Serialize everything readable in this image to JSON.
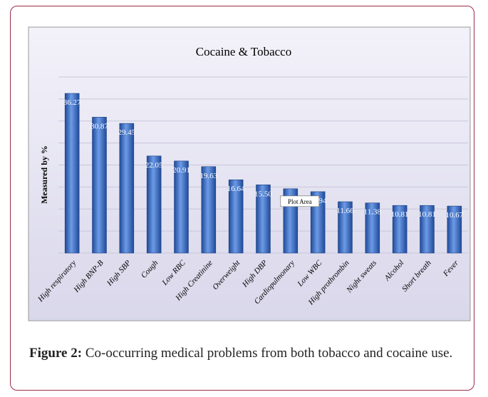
{
  "chart_data": {
    "type": "bar",
    "title": "Cocaine & Tobacco",
    "ylabel": "Measured by %",
    "categories": [
      "High respiratory",
      "High BNP-B",
      "High SBP",
      "Cough",
      "Low RBC",
      "High Creatinine",
      "Overweight",
      "High DBP",
      "Cardiopulmonary",
      "Low WBC",
      "High prothrombin",
      "Night sweats",
      "Alcohol",
      "Short breath",
      "Fever"
    ],
    "values": [
      36.27,
      30.87,
      29.45,
      22.05,
      20.91,
      19.63,
      16.64,
      15.5,
      14.6,
      13.94,
      11.66,
      11.38,
      10.81,
      10.81,
      10.67
    ],
    "value_labels": [
      "36.27",
      "30.87",
      "29.45",
      "22.05",
      "20.91",
      "19.63",
      "16.64",
      "15.50",
      null,
      "13.94",
      "11.66",
      "11.38",
      "10.81",
      "10.81",
      "10.67"
    ],
    "color": "#3b6bc4",
    "ylim": [
      0,
      40
    ],
    "yticks": [
      0,
      5,
      10,
      15,
      20,
      25,
      30,
      35,
      40
    ],
    "grid": true,
    "tooltip": "Plot Area"
  },
  "caption": {
    "label": "Figure 2:",
    "text": "Co-occurring medical problems from both tobacco and cocaine use."
  }
}
